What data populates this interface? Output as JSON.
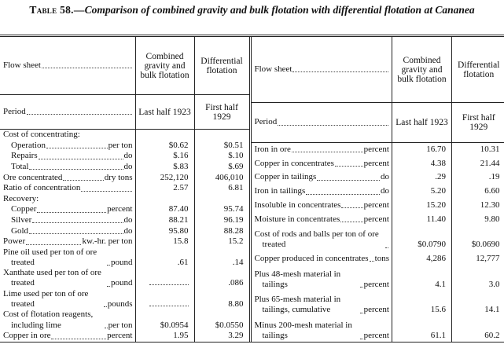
{
  "table": {
    "number": "Table 58.—",
    "title": "Comparison of combined gravity and bulk flotation with differential flotation at Cananea",
    "halves": [
      {
        "headers": [
          "Flow sheet",
          "Combined gravity and bulk flotation",
          "Differential flotation"
        ],
        "period": [
          "Period",
          "Last half 1923",
          "First half 1929"
        ],
        "rows": [
          {
            "label": "Cost of concentrating:",
            "rows": [
              {
                "label": "Operation",
                "unit": "per ton",
                "values": [
                  "$0.62",
                  "$0.51"
                ]
              },
              {
                "label": "Repairs",
                "unit": "do",
                "values": [
                  "$.16",
                  "$.10"
                ]
              },
              {
                "label": "Total",
                "unit": "do",
                "values": [
                  "$.83",
                  "$.69"
                ]
              }
            ]
          },
          {
            "label": "Ore concentrated",
            "unit": "dry tons",
            "values": [
              "252,120",
              "406,010"
            ]
          },
          {
            "label": "Ratio of concentration",
            "values": [
              "2.57",
              "6.81"
            ]
          },
          {
            "label": "Recovery:",
            "rows": [
              {
                "label": "Copper",
                "unit": "percent",
                "values": [
                  "87.40",
                  "95.74"
                ]
              },
              {
                "label": "Silver",
                "unit": "do",
                "values": [
                  "88.21",
                  "96.19"
                ]
              },
              {
                "label": "Gold",
                "unit": "do",
                "values": [
                  "95.80",
                  "88.28"
                ]
              }
            ]
          },
          {
            "label": "Power",
            "unit": "kw.-hr. per ton",
            "values": [
              "15.8",
              "15.2"
            ]
          },
          {
            "label": "Pine oil used per ton of ore treated",
            "unit": "pound",
            "values": [
              ".61",
              ".14"
            ]
          },
          {
            "label": "Xanthate used per ton of ore treated",
            "unit": "pound",
            "values": [
              null,
              ".086"
            ]
          },
          {
            "label": "Lime used per ton of ore treated",
            "unit": "pounds",
            "values": [
              null,
              "8.80"
            ]
          },
          {
            "label": "Cost of flotation reagents, including lime",
            "unit": "per ton",
            "values": [
              "$0.0954",
              "$0.0550"
            ]
          },
          {
            "label": "Copper in ore",
            "unit": "percent",
            "values": [
              "1.95",
              "3.29"
            ]
          }
        ]
      },
      {
        "headers": [
          "Flow sheet",
          "Combined gravity and bulk flotation",
          "Differential flotation"
        ],
        "period": [
          "Period",
          "Last half 1923",
          "First half 1929"
        ],
        "rows": [
          {
            "label": "Iron in ore",
            "unit": "percent",
            "values": [
              "16.70",
              "10.31"
            ]
          },
          {
            "label": "Copper in concentrates",
            "unit": "percent",
            "values": [
              "4.38",
              "21.44"
            ]
          },
          {
            "label": "Copper in tailings",
            "unit": "do",
            "values": [
              ".29",
              ".19"
            ]
          },
          {
            "label": "Iron in tailings",
            "unit": "do",
            "values": [
              "5.20",
              "6.60"
            ]
          },
          {
            "label": "Insoluble in concentrates",
            "unit": "percent",
            "values": [
              "15.20",
              "12.30"
            ]
          },
          {
            "label": "Moisture in concentrates",
            "unit": "percent",
            "values": [
              "11.40",
              "9.80"
            ]
          },
          {
            "label": "Cost of rods and balls per ton of ore treated",
            "values": [
              "$0.0790",
              "$0.0690"
            ]
          },
          {
            "label": "Copper produced in concentrates",
            "unit": "tons",
            "values": [
              "4,286",
              "12,777"
            ]
          },
          {
            "label": "Plus 48-mesh material in tailings",
            "unit": "percent",
            "values": [
              "4.1",
              "3.0"
            ]
          },
          {
            "label": "Plus 65-mesh material in tailings, cumulative",
            "unit": "percent",
            "values": [
              "15.6",
              "14.1"
            ]
          },
          {
            "label": "Minus 200-mesh material in tailings",
            "unit": "percent",
            "values": [
              "61.1",
              "60.2"
            ]
          }
        ]
      }
    ]
  }
}
